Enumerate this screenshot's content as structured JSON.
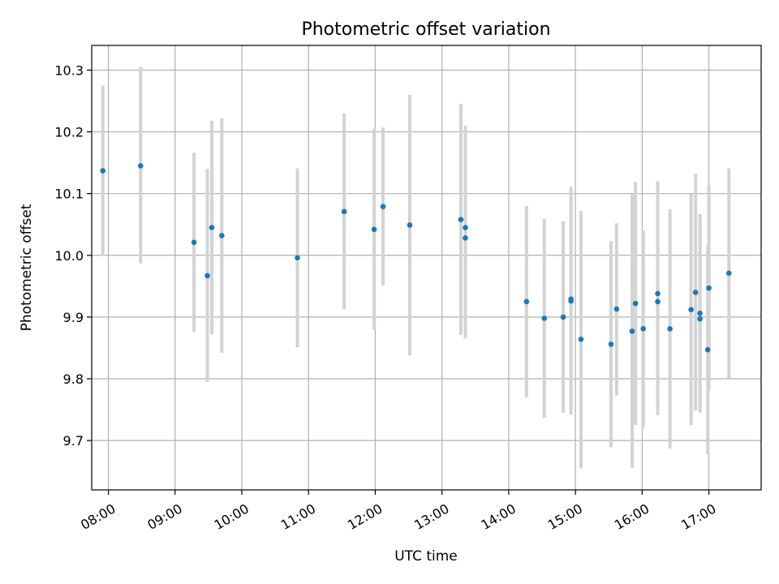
{
  "chart_data": {
    "type": "scatter",
    "title": "Photometric offset variation",
    "xlabel": "UTC time",
    "ylabel": "Photometric offset",
    "x_ticks": [
      "08:00",
      "09:00",
      "10:00",
      "11:00",
      "12:00",
      "13:00",
      "14:00",
      "15:00",
      "16:00",
      "17:00"
    ],
    "y_ticks": [
      "9.7",
      "9.8",
      "9.9",
      "10.0",
      "10.1",
      "10.2",
      "10.3"
    ],
    "xlim": [
      "07:45",
      "17:47"
    ],
    "ylim": [
      9.62,
      10.34
    ],
    "grid": true,
    "error_bar_color": "#d3d3d3",
    "point_color": "#1f77b4",
    "points": [
      {
        "x": "07:55",
        "y": 10.137,
        "lo": 10.0,
        "hi": 10.275
      },
      {
        "x": "08:29",
        "y": 10.145,
        "lo": 9.987,
        "hi": 10.305
      },
      {
        "x": "09:17",
        "y": 10.021,
        "lo": 9.876,
        "hi": 10.166
      },
      {
        "x": "09:29",
        "y": 9.967,
        "lo": 9.795,
        "hi": 10.14
      },
      {
        "x": "09:33",
        "y": 10.045,
        "lo": 9.872,
        "hi": 10.218
      },
      {
        "x": "09:42",
        "y": 10.032,
        "lo": 9.842,
        "hi": 10.222
      },
      {
        "x": "10:50",
        "y": 9.996,
        "lo": 9.851,
        "hi": 10.141
      },
      {
        "x": "11:32",
        "y": 10.071,
        "lo": 9.913,
        "hi": 10.23
      },
      {
        "x": "11:59",
        "y": 10.042,
        "lo": 9.88,
        "hi": 10.205
      },
      {
        "x": "12:07",
        "y": 10.079,
        "lo": 9.951,
        "hi": 10.207
      },
      {
        "x": "12:31",
        "y": 10.049,
        "lo": 9.838,
        "hi": 10.26
      },
      {
        "x": "13:17",
        "y": 10.058,
        "lo": 9.871,
        "hi": 10.245
      },
      {
        "x": "13:21",
        "y": 10.045,
        "lo": 9.88,
        "hi": 10.21
      },
      {
        "x": "13:21",
        "y": 10.028,
        "lo": 9.865,
        "hi": 10.2
      },
      {
        "x": "14:16",
        "y": 9.925,
        "lo": 9.77,
        "hi": 10.08
      },
      {
        "x": "14:32",
        "y": 9.898,
        "lo": 9.737,
        "hi": 10.059
      },
      {
        "x": "14:49",
        "y": 9.9,
        "lo": 9.745,
        "hi": 10.055
      },
      {
        "x": "14:56",
        "y": 9.929,
        "lo": 9.742,
        "hi": 10.111
      },
      {
        "x": "14:56",
        "y": 9.926,
        "lo": 9.75,
        "hi": 10.1
      },
      {
        "x": "15:05",
        "y": 9.864,
        "lo": 9.655,
        "hi": 10.072
      },
      {
        "x": "15:32",
        "y": 9.856,
        "lo": 9.689,
        "hi": 10.023
      },
      {
        "x": "15:37",
        "y": 9.913,
        "lo": 9.773,
        "hi": 10.052
      },
      {
        "x": "15:51",
        "y": 9.877,
        "lo": 9.656,
        "hi": 10.099
      },
      {
        "x": "15:54",
        "y": 9.922,
        "lo": 9.725,
        "hi": 10.119
      },
      {
        "x": "16:01",
        "y": 9.881,
        "lo": 9.721,
        "hi": 10.04
      },
      {
        "x": "16:14",
        "y": 9.938,
        "lo": 9.741,
        "hi": 10.12
      },
      {
        "x": "16:14",
        "y": 9.925,
        "lo": 9.76,
        "hi": 10.09
      },
      {
        "x": "16:25",
        "y": 9.881,
        "lo": 9.687,
        "hi": 10.075
      },
      {
        "x": "16:44",
        "y": 9.912,
        "lo": 9.725,
        "hi": 10.099
      },
      {
        "x": "16:48",
        "y": 9.94,
        "lo": 9.749,
        "hi": 10.132
      },
      {
        "x": "16:52",
        "y": 9.906,
        "lo": 9.745,
        "hi": 10.067
      },
      {
        "x": "16:52",
        "y": 9.897,
        "lo": 9.75,
        "hi": 10.05
      },
      {
        "x": "16:59",
        "y": 9.847,
        "lo": 9.677,
        "hi": 10.017
      },
      {
        "x": "17:00",
        "y": 9.947,
        "lo": 9.781,
        "hi": 10.113
      },
      {
        "x": "17:18",
        "y": 9.971,
        "lo": 9.801,
        "hi": 10.141
      }
    ]
  }
}
